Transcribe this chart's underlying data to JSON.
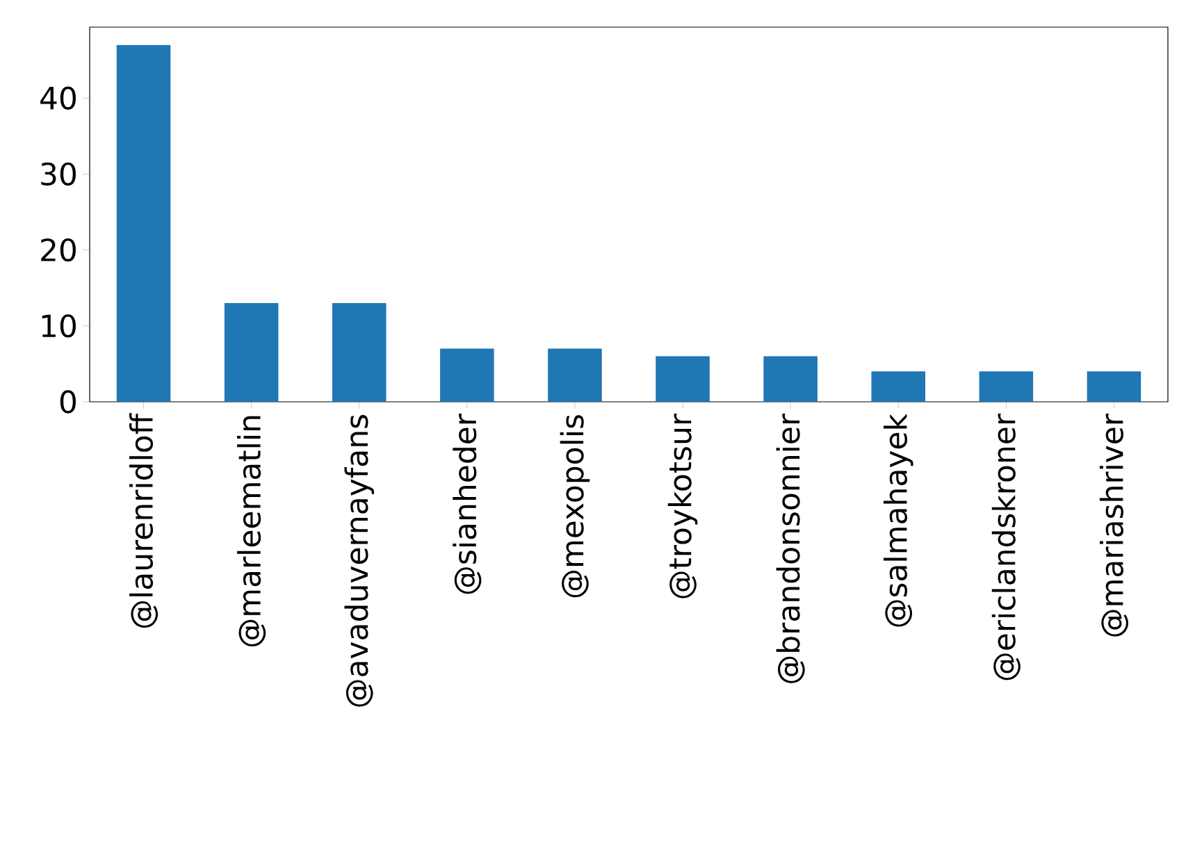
{
  "chart_data": {
    "type": "bar",
    "categories": [
      "@laurenridloff",
      "@marleematlin",
      "@avaduvernayfans",
      "@sianheder",
      "@mexopolis",
      "@troykotsur",
      "@brandonsonnier",
      "@salmahayek",
      "@ericlandskroner",
      "@mariashriver"
    ],
    "values": [
      47,
      13,
      13,
      7,
      7,
      6,
      6,
      4,
      4,
      4
    ],
    "color": "#1f77b4",
    "ylim": [
      0,
      49.35
    ],
    "yticks": [
      0,
      10,
      20,
      30,
      40
    ]
  }
}
